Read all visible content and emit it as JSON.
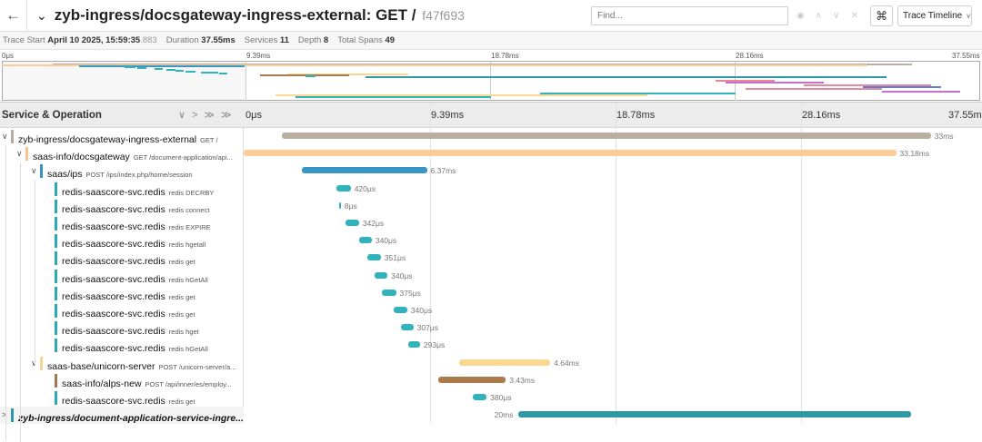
{
  "header": {
    "back_icon": "arrow-left-icon",
    "collapse_icon": "chevron-down-icon",
    "title": "zyb-ingress/docsgateway-ingress-external: GET /",
    "trace_id": "f47f693",
    "find_placeholder": "Find...",
    "keyboard_icon": "command-icon",
    "view_select": "Trace Timeline"
  },
  "meta": {
    "trace_start_label": "Trace Start",
    "trace_start_date": "April 10 2025, 15:59:35",
    "trace_start_ms": ".883",
    "duration_label": "Duration",
    "duration": "37.55ms",
    "services_label": "Services",
    "services": "11",
    "depth_label": "Depth",
    "depth": "8",
    "total_spans_label": "Total Spans",
    "total_spans": "49"
  },
  "minimap": {
    "ticks": [
      "0μs",
      "9.39ms",
      "18.78ms",
      "28.16ms",
      "37.55ms"
    ]
  },
  "timeline": {
    "column_title": "Service & Operation",
    "controls": [
      "∨",
      ">",
      "≫",
      "≫"
    ],
    "ticks": [
      "0μs",
      "9.39ms",
      "18.78ms",
      "28.16ms",
      "37.55ms"
    ],
    "total_ms": 37.55
  },
  "rows": [
    {
      "service": "zyb-ingress/docsgateway-ingress-external",
      "op": "GET /",
      "depth": 0,
      "toggle": "∨",
      "color": "#b3ab9c",
      "start": 1.95,
      "dur_ms": 33.0,
      "dur": "33ms",
      "bar": "#b7b0a3"
    },
    {
      "service": "saas-info/docsgateway",
      "op": "GET /document-application/api...",
      "depth": 1,
      "toggle": "∨",
      "color": "#f7c48e",
      "start": 0.0,
      "dur_ms": 33.18,
      "dur": "33.18ms",
      "bar": "#fbcb98"
    },
    {
      "service": "saas/ips",
      "op": "POST /ips/index.php/home/session",
      "depth": 2,
      "toggle": "∨",
      "color": "#3692c2",
      "start": 2.95,
      "dur_ms": 6.37,
      "dur": "6.37ms",
      "bar": "#3a94c4"
    },
    {
      "service": "redis-saascore-svc.redis",
      "op": "redis DECRBY",
      "depth": 3,
      "toggle": "",
      "color": "#2aaab5",
      "start": 4.7,
      "dur_ms": 0.42,
      "dur": "420μs",
      "bar": "#31b3bd"
    },
    {
      "service": "redis-saascore-svc.redis",
      "op": "redis connect",
      "depth": 3,
      "toggle": "",
      "color": "#2aaab5",
      "start": 4.85,
      "dur_ms": 0.008,
      "dur": "8μs",
      "bar": "#31b3bd"
    },
    {
      "service": "redis-saascore-svc.redis",
      "op": "redis EXPIRE",
      "depth": 3,
      "toggle": "",
      "color": "#2aaab5",
      "start": 5.2,
      "dur_ms": 0.342,
      "dur": "342μs",
      "bar": "#31b3bd"
    },
    {
      "service": "redis-saascore-svc.redis",
      "op": "redis hgetall",
      "depth": 3,
      "toggle": "",
      "color": "#2aaab5",
      "start": 5.85,
      "dur_ms": 0.34,
      "dur": "340μs",
      "bar": "#31b3bd"
    },
    {
      "service": "redis-saascore-svc.redis",
      "op": "redis get",
      "depth": 3,
      "toggle": "",
      "color": "#2aaab5",
      "start": 6.3,
      "dur_ms": 0.351,
      "dur": "351μs",
      "bar": "#31b3bd"
    },
    {
      "service": "redis-saascore-svc.redis",
      "op": "redis hGetAll",
      "depth": 3,
      "toggle": "",
      "color": "#2aaab5",
      "start": 6.65,
      "dur_ms": 0.34,
      "dur": "340μs",
      "bar": "#31b3bd"
    },
    {
      "service": "redis-saascore-svc.redis",
      "op": "redis get",
      "depth": 3,
      "toggle": "",
      "color": "#2aaab5",
      "start": 7.05,
      "dur_ms": 0.375,
      "dur": "375μs",
      "bar": "#31b3bd"
    },
    {
      "service": "redis-saascore-svc.redis",
      "op": "redis get",
      "depth": 3,
      "toggle": "",
      "color": "#2aaab5",
      "start": 7.65,
      "dur_ms": 0.34,
      "dur": "340μs",
      "bar": "#31b3bd"
    },
    {
      "service": "redis-saascore-svc.redis",
      "op": "redis hget",
      "depth": 3,
      "toggle": "",
      "color": "#2aaab5",
      "start": 8.0,
      "dur_ms": 0.307,
      "dur": "307μs",
      "bar": "#31b3bd"
    },
    {
      "service": "redis-saascore-svc.redis",
      "op": "redis hGetAll",
      "depth": 3,
      "toggle": "",
      "color": "#2aaab5",
      "start": 8.35,
      "dur_ms": 0.293,
      "dur": "293μs",
      "bar": "#31b3bd"
    },
    {
      "service": "saas-base/unicorn-server",
      "op": "POST /unicorn-server/a...",
      "depth": 2,
      "toggle": "∨",
      "color": "#f8d493",
      "start": 10.95,
      "dur_ms": 4.64,
      "dur": "4.64ms",
      "bar": "#fad891"
    },
    {
      "service": "saas-info/alps-new",
      "op": "POST /api/inner/es/employ...",
      "depth": 3,
      "toggle": "",
      "color": "#a9784a",
      "start": 9.9,
      "dur_ms": 3.43,
      "dur": "3.43ms",
      "bar": "#ab7b4c"
    },
    {
      "service": "redis-saascore-svc.redis",
      "op": "redis get",
      "depth": 3,
      "toggle": "",
      "color": "#2aaab5",
      "start": 11.65,
      "dur_ms": 0.38,
      "dur": "380μs",
      "bar": "#31b3bd"
    },
    {
      "service": "zyb-ingress/document-application-service-ingre...",
      "op": "",
      "depth": 0,
      "toggle": ">",
      "color": "#2a9aa5",
      "start": 13.95,
      "dur_ms": 20.0,
      "dur": "20ms",
      "bar": "#2f99a4",
      "label_left": true
    }
  ]
}
